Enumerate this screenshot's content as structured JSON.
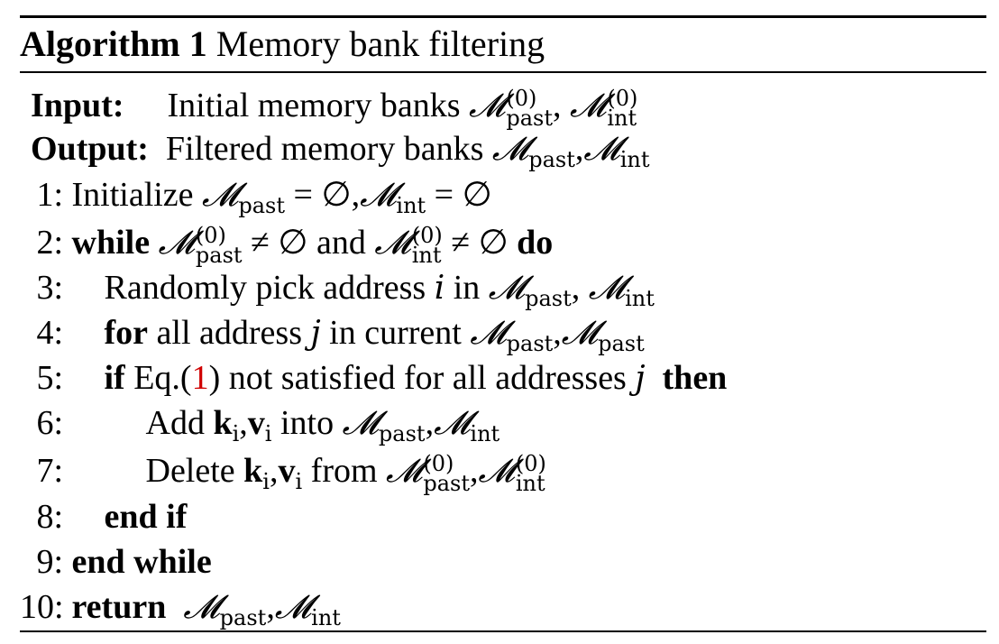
{
  "algorithm": {
    "label": "Algorithm 1",
    "title": "Memory bank filtering",
    "input_label": "Input:",
    "input_text": "Initial memory banks",
    "output_label": "Output:",
    "output_text": "Filtered memory banks",
    "symbols": {
      "M": "𝓜",
      "past": "past",
      "int": "int",
      "zero_sup": "(0)",
      "empty": "∅",
      "eq": "=",
      "neq": "≠",
      "i": "i",
      "j": "j",
      "k": "k",
      "v": "v"
    },
    "lines": [
      {
        "num": "1:",
        "text": "Initialize"
      },
      {
        "num": "2:",
        "kw1": "while",
        "mid": "and",
        "kw2": "do"
      },
      {
        "num": "3:",
        "text": "Randomly pick address",
        "mid": "in"
      },
      {
        "num": "4:",
        "kw1": "for",
        "text": "all address",
        "mid": "in current"
      },
      {
        "num": "5:",
        "kw1": "if",
        "text_a": "Eq.(",
        "ref": "1",
        "text_b": ") not satisfied for all addresses",
        "kw2": "then"
      },
      {
        "num": "6:",
        "text": "Add",
        "mid": "into"
      },
      {
        "num": "7:",
        "text": "Delete",
        "mid": "from"
      },
      {
        "num": "8:",
        "kw1": "end if"
      },
      {
        "num": "9:",
        "kw1": "end while"
      },
      {
        "num": "10:",
        "kw1": "return"
      }
    ]
  }
}
